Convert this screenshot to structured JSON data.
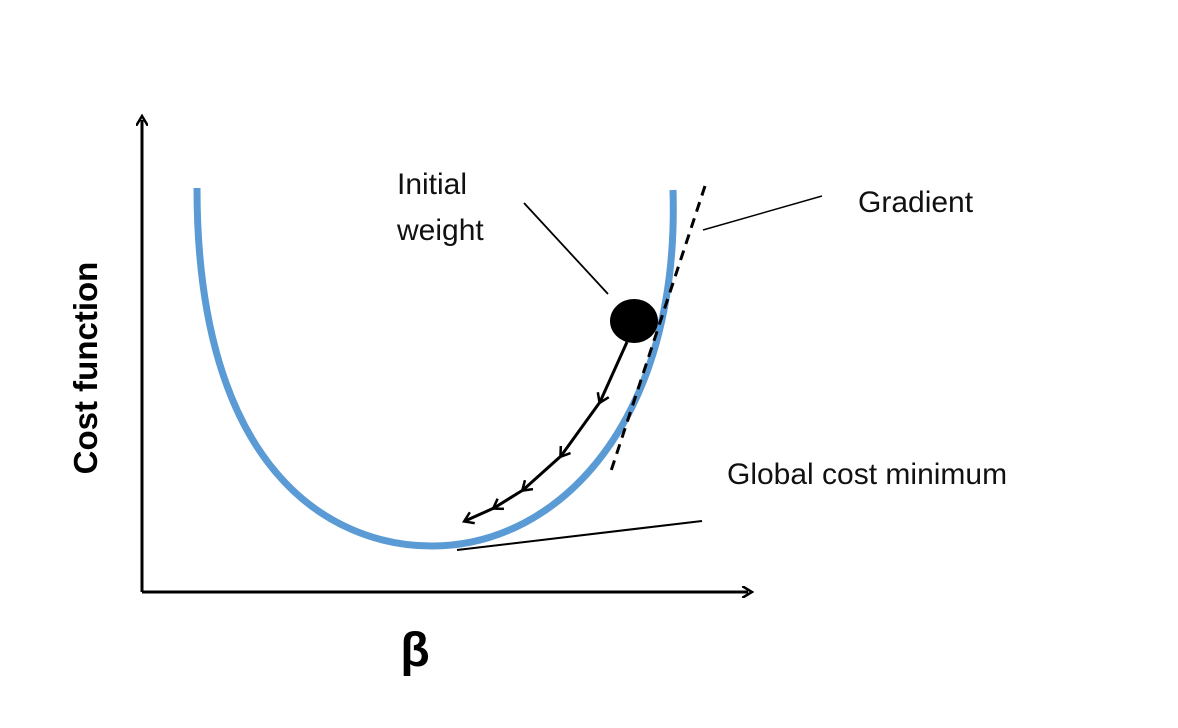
{
  "labels": {
    "initial_weight_line1": "Initial",
    "initial_weight_line2": "weight",
    "gradient": "Gradient",
    "global_minimum": "Global cost minimum",
    "y_axis": "Cost function",
    "x_axis": "β"
  },
  "colors": {
    "curve": "#5b9bd5",
    "axes": "#000000",
    "ball": "#000000",
    "leader_lines": "#000000",
    "tangent": "#000000",
    "text": "#111111"
  }
}
